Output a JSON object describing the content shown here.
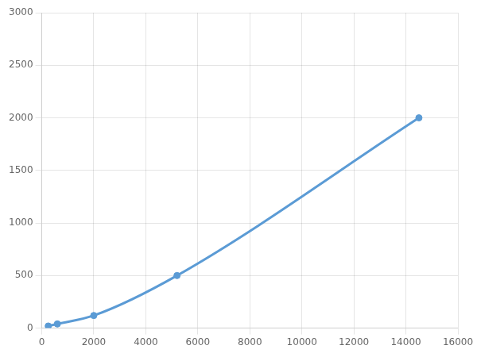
{
  "chart_data": {
    "type": "line",
    "x": [
      250,
      600,
      2000,
      5200,
      14500
    ],
    "values": [
      20,
      40,
      120,
      500,
      2000
    ],
    "color": "#5b9bd5",
    "marker": "circle",
    "xlim": [
      0,
      16000
    ],
    "ylim": [
      0,
      3000
    ],
    "xticks": [
      0,
      2000,
      4000,
      6000,
      8000,
      10000,
      12000,
      14000,
      16000
    ],
    "yticks": [
      0,
      500,
      1000,
      1500,
      2000,
      2500,
      3000
    ],
    "grid": true
  }
}
